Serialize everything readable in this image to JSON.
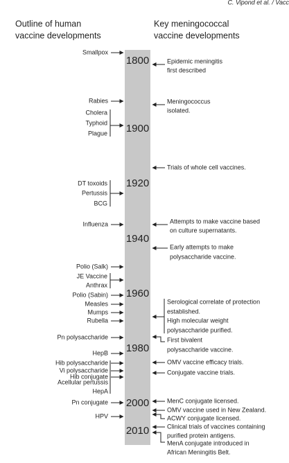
{
  "running_header": "C. Vipond et al. / Vacc",
  "headers": {
    "left": [
      "Outline of human",
      "vaccine developments"
    ],
    "right": [
      "Key meningococcal",
      "vaccine developments"
    ]
  },
  "years": [
    "1800",
    "1900",
    "1920",
    "1940",
    "1960",
    "1980",
    "2000",
    "2010"
  ],
  "human_vaccines": [
    "Smallpox",
    "Rabies",
    "Cholera",
    "Typhoid",
    "Plague",
    "DT toxoids",
    "Pertussis",
    "BCG",
    "Influenza",
    "Polio (Salk)",
    "JE Vaccine",
    "Anthrax",
    "Polio (Sabin)",
    "Measles",
    "Mumps",
    "Rubella",
    "Pn polysaccharide",
    "HepB",
    "Hib polysaccharide",
    "Vi polysaccharide",
    "Hib conjugate",
    "Acellular pertussis",
    "HepA",
    "Pn conjugate",
    "HPV"
  ],
  "meningococcal_developments": [
    [
      "Epidemic meningitis",
      "first described"
    ],
    [
      "Meningococcus",
      "isolated."
    ],
    [
      "Trials of whole cell vaccines."
    ],
    [
      "Attempts to make vaccine based",
      "on culture supernatants."
    ],
    [
      "Early attempts to make",
      "polysaccharide vaccine."
    ],
    [
      "Serological correlate of protection",
      "established."
    ],
    [
      "High molecular weight",
      "polysaccharide purified."
    ],
    [
      "First bivalent",
      "polysaccharide vaccine."
    ],
    [
      "OMV vaccine efficacy trials."
    ],
    [
      "Conjugate vaccine trials."
    ],
    [
      "MenC conjugate licensed."
    ],
    [
      "OMV vaccine used in New Zealand."
    ],
    [
      "ACWY conjugate licensed."
    ],
    [
      "Clinical trials of vaccines containing",
      "purified protein antigens."
    ],
    [
      "MenA conjugate introduced in",
      "African Meningitis Belt."
    ]
  ]
}
